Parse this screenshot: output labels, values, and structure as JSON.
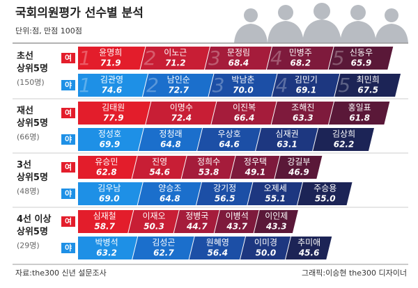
{
  "chart_data": {
    "type": "segmented-bar",
    "title": "국회의원평가 선수별 분석",
    "subtitle": "단위:점, 만점 100점",
    "source": "자료:the300 신년 설문조사",
    "credit": "그래픽:이승현 the300 디자이너",
    "rank_numbers": [
      1,
      2,
      3,
      4,
      5
    ],
    "groups": [
      {
        "label": [
          "초선",
          "상위5명"
        ],
        "count": "(150명)",
        "rows": [
          {
            "party": "여",
            "names": [
              "윤명희",
              "이노근",
              "문정림",
              "민병주",
              "신동우"
            ],
            "values": [
              71.9,
              71.2,
              68.4,
              68.2,
              65.9
            ],
            "value_labels": [
              "71.9",
              "71.2",
              "68.4",
              "68.2",
              "65.9"
            ],
            "colors": [
              "#e31d2b",
              "#c81e35",
              "#a51c3b",
              "#7e1a3c",
              "#5a1838"
            ]
          },
          {
            "party": "야",
            "names": [
              "김관영",
              "남인순",
              "박남춘",
              "김민기",
              "최민희"
            ],
            "values": [
              74.6,
              72.7,
              70.0,
              69.1,
              67.5
            ],
            "value_labels": [
              "74.6",
              "72.7",
              "70.0",
              "69.1",
              "67.5"
            ],
            "colors": [
              "#1e90e6",
              "#1b6fcc",
              "#1c4fa6",
              "#1d3780",
              "#1c2456"
            ]
          }
        ]
      },
      {
        "label": [
          "재선",
          "상위5명"
        ],
        "count": "(66명)",
        "rows": [
          {
            "party": "여",
            "names": [
              "김태원",
              "이명수",
              "이진복",
              "조해진",
              "홍일표"
            ],
            "values": [
              77.9,
              72.4,
              66.4,
              63.3,
              61.8
            ],
            "value_labels": [
              "77.9",
              "72.4",
              "66.4",
              "63.3",
              "61.8"
            ],
            "colors": [
              "#e31d2b",
              "#c81e35",
              "#a51c3b",
              "#7e1a3c",
              "#5a1838"
            ]
          },
          {
            "party": "야",
            "names": [
              "정성호",
              "정청래",
              "우상호",
              "심재권",
              "김상희"
            ],
            "values": [
              69.9,
              64.8,
              64.6,
              63.1,
              62.2
            ],
            "value_labels": [
              "69.9",
              "64.8",
              "64.6",
              "63.1",
              "62.2"
            ],
            "colors": [
              "#1e90e6",
              "#1b6fcc",
              "#1c4fa6",
              "#1d3780",
              "#1c2456"
            ]
          }
        ]
      },
      {
        "label": [
          "3선",
          "상위5명"
        ],
        "count": "(48명)",
        "rows": [
          {
            "party": "여",
            "names": [
              "유승민",
              "진영",
              "정희수",
              "정우택",
              "강길부"
            ],
            "values": [
              62.8,
              54.6,
              53.8,
              49.1,
              46.9
            ],
            "value_labels": [
              "62.8",
              "54.6",
              "53.8",
              "49.1",
              "46.9"
            ],
            "colors": [
              "#e31d2b",
              "#c81e35",
              "#a51c3b",
              "#7e1a3c",
              "#5a1838"
            ]
          },
          {
            "party": "야",
            "names": [
              "김우남",
              "양승조",
              "강기정",
              "오제세",
              "주승용"
            ],
            "values": [
              69.0,
              64.8,
              56.5,
              55.1,
              55.0
            ],
            "value_labels": [
              "69.0",
              "64.8",
              "56.5",
              "55.1",
              "55.0"
            ],
            "colors": [
              "#1e90e6",
              "#1b6fcc",
              "#1c4fa6",
              "#1d3780",
              "#1c2456"
            ]
          }
        ]
      },
      {
        "label": [
          "4선 이상",
          "상위5명"
        ],
        "count": "(29명)",
        "rows": [
          {
            "party": "여",
            "names": [
              "심재철",
              "이재오",
              "정병국",
              "이병석",
              "이인제"
            ],
            "values": [
              58.7,
              50.3,
              44.7,
              43.7,
              43.3
            ],
            "value_labels": [
              "58.7",
              "50.3",
              "44.7",
              "43.7",
              "43.3"
            ],
            "colors": [
              "#e31d2b",
              "#c81e35",
              "#a51c3b",
              "#7e1a3c",
              "#5a1838"
            ]
          },
          {
            "party": "야",
            "names": [
              "박병석",
              "김성곤",
              "원혜영",
              "이미경",
              "추미애"
            ],
            "values": [
              63.2,
              62.7,
              56.4,
              50.0,
              45.6
            ],
            "value_labels": [
              "63.2",
              "62.7",
              "56.4",
              "50.0",
              "45.6"
            ],
            "colors": [
              "#1e90e6",
              "#1b6fcc",
              "#1c4fa6",
              "#1d3780",
              "#1c2456"
            ]
          }
        ]
      }
    ]
  }
}
